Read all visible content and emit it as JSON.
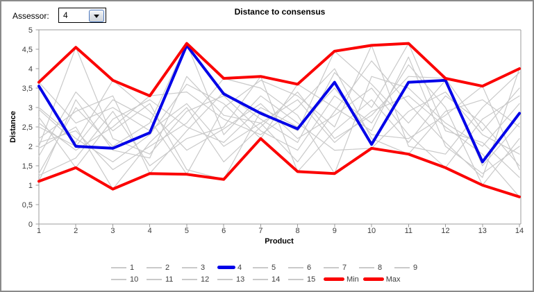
{
  "window": {
    "assessor_label": "Assessor:",
    "assessor_value": "4"
  },
  "chart_data": {
    "type": "line",
    "title": "Distance to consensus",
    "xlabel": "Product",
    "ylabel": "Distance",
    "x": [
      1,
      2,
      3,
      4,
      5,
      6,
      7,
      8,
      9,
      10,
      11,
      12,
      13,
      14
    ],
    "xlim": [
      1,
      14
    ],
    "ylim": [
      0,
      5
    ],
    "ytick_step": 0.5,
    "y_tick_labels": [
      "0",
      "0,5",
      "1",
      "1,5",
      "2",
      "2,5",
      "3",
      "3,5",
      "4",
      "4,5",
      "5"
    ],
    "decimal_separator": ",",
    "grid": false,
    "legend_position": "bottom",
    "colors": {
      "assessor_line": "#c9c9c9",
      "selected_line": "#0000e8",
      "minmax_line": "#fb0000",
      "axis": "#9b9b9b",
      "tick_text": "#3c3c3c"
    },
    "series": [
      {
        "name": "1",
        "role": "assessor",
        "values": [
          3.65,
          2.6,
          3.0,
          2.4,
          3.1,
          2.0,
          2.6,
          3.2,
          2.1,
          2.9,
          3.3,
          2.5,
          1.8,
          0.7
        ]
      },
      {
        "name": "2",
        "role": "assessor",
        "values": [
          2.0,
          4.55,
          2.2,
          1.8,
          2.9,
          3.3,
          2.4,
          1.9,
          3.3,
          2.6,
          4.1,
          3.0,
          1.0,
          2.2
        ]
      },
      {
        "name": "3",
        "role": "assessor",
        "values": [
          2.95,
          2.1,
          3.7,
          2.9,
          1.9,
          2.45,
          3.1,
          2.2,
          2.8,
          3.5,
          2.3,
          1.45,
          2.7,
          3.3
        ]
      },
      {
        "name": "4",
        "role": "selected",
        "values": [
          3.55,
          2.0,
          1.95,
          2.35,
          4.6,
          3.35,
          2.85,
          2.45,
          3.65,
          2.05,
          3.65,
          3.7,
          1.6,
          2.85
        ]
      },
      {
        "name": "5",
        "role": "assessor",
        "values": [
          2.6,
          1.9,
          2.5,
          3.3,
          3.4,
          2.7,
          2.3,
          3.0,
          4.0,
          2.2,
          1.8,
          2.9,
          3.2,
          2.5
        ]
      },
      {
        "name": "6",
        "role": "assessor",
        "values": [
          1.3,
          3.0,
          2.0,
          2.6,
          4.65,
          2.3,
          3.3,
          2.6,
          1.9,
          1.95,
          2.9,
          3.4,
          2.3,
          1.8
        ]
      },
      {
        "name": "7",
        "role": "assessor",
        "values": [
          2.1,
          2.4,
          1.4,
          2.0,
          2.6,
          3.75,
          3.5,
          2.8,
          1.3,
          3.8,
          3.5,
          2.6,
          2.0,
          3.1
        ]
      },
      {
        "name": "8",
        "role": "assessor",
        "values": [
          1.25,
          1.7,
          2.9,
          1.5,
          2.2,
          2.5,
          3.8,
          1.35,
          2.4,
          3.2,
          2.1,
          3.3,
          2.6,
          1.5
        ]
      },
      {
        "name": "9",
        "role": "assessor",
        "values": [
          3.0,
          2.2,
          1.6,
          2.3,
          3.6,
          3.1,
          2.2,
          3.6,
          3.0,
          2.4,
          4.3,
          2.0,
          1.3,
          2.0
        ]
      },
      {
        "name": "10",
        "role": "assessor",
        "values": [
          1.75,
          3.4,
          2.4,
          3.1,
          1.4,
          1.15,
          2.9,
          2.4,
          4.45,
          3.6,
          2.6,
          3.7,
          1.5,
          2.6
        ]
      },
      {
        "name": "11",
        "role": "assessor",
        "values": [
          2.5,
          2.0,
          3.2,
          2.7,
          1.28,
          3.0,
          3.7,
          3.3,
          2.5,
          4.6,
          2.0,
          1.8,
          3.0,
          3.9
        ]
      },
      {
        "name": "12",
        "role": "assessor",
        "values": [
          2.2,
          2.9,
          3.3,
          1.3,
          2.4,
          3.4,
          2.7,
          2.1,
          3.9,
          3.0,
          4.65,
          2.4,
          2.1,
          1.2
        ]
      },
      {
        "name": "13",
        "role": "assessor",
        "values": [
          1.95,
          2.5,
          0.9,
          2.1,
          3.0,
          1.6,
          2.5,
          3.4,
          2.2,
          2.8,
          3.8,
          3.75,
          2.4,
          3.5
        ]
      },
      {
        "name": "14",
        "role": "assessor",
        "values": [
          2.75,
          1.45,
          2.7,
          3.2,
          2.5,
          2.1,
          3.0,
          2.5,
          3.5,
          2.3,
          2.2,
          2.8,
          3.55,
          1.4
        ]
      },
      {
        "name": "15",
        "role": "assessor",
        "values": [
          1.1,
          3.2,
          1.9,
          1.7,
          3.8,
          2.8,
          2.6,
          1.6,
          2.9,
          4.2,
          3.1,
          2.1,
          1.2,
          4.0
        ]
      },
      {
        "name": "Min",
        "role": "minmax",
        "values": [
          1.1,
          1.45,
          0.9,
          1.3,
          1.28,
          1.15,
          2.2,
          1.35,
          1.3,
          1.95,
          1.8,
          1.45,
          1.0,
          0.7
        ]
      },
      {
        "name": "Max",
        "role": "minmax",
        "values": [
          3.65,
          4.55,
          3.7,
          3.3,
          4.65,
          3.75,
          3.8,
          3.6,
          4.45,
          4.6,
          4.65,
          3.75,
          3.55,
          4.0
        ]
      }
    ],
    "legend_rows": [
      9,
      8
    ]
  }
}
